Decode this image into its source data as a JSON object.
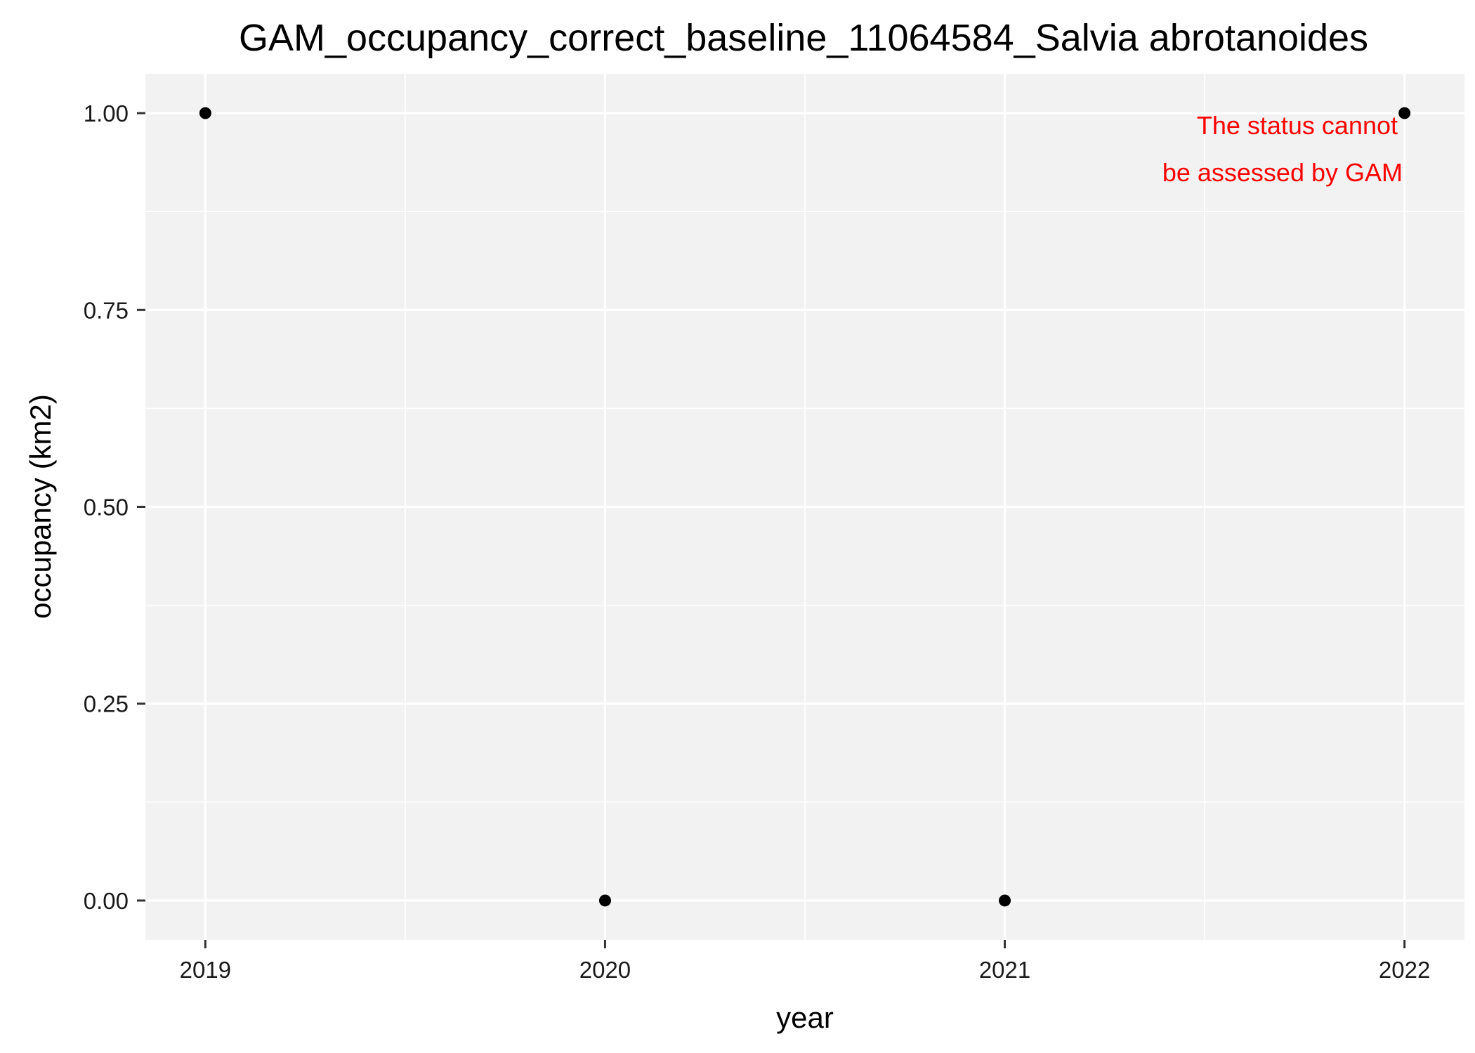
{
  "chart_data": {
    "type": "scatter",
    "title": "GAM_occupancy_correct_baseline_11064584_Salvia abrotanoides",
    "xlabel": "year",
    "ylabel": "occupancy (km2)",
    "x_ticks": [
      "2019",
      "2020",
      "2021",
      "2022"
    ],
    "y_ticks": [
      "0.00",
      "0.25",
      "0.50",
      "0.75",
      "1.00"
    ],
    "xlim": [
      2018.85,
      2022.15
    ],
    "ylim": [
      -0.05,
      1.05
    ],
    "grid": true,
    "x": [
      2019,
      2020,
      2021,
      2022
    ],
    "y": [
      1,
      0,
      0,
      1
    ],
    "annotation": {
      "lines": [
        "The status cannot",
        "be assessed by GAM"
      ],
      "color": "#ff0000"
    },
    "colors": {
      "panel_background": "#f2f2f2",
      "grid": "#ffffff",
      "point": "#000000"
    }
  }
}
